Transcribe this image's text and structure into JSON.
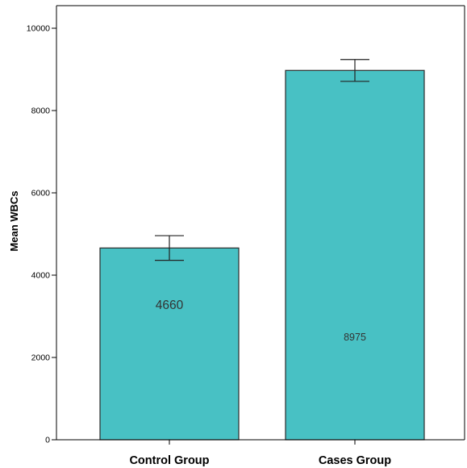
{
  "chart_data": {
    "type": "bar",
    "categories": [
      "Control Group",
      "Cases Group"
    ],
    "values": [
      4660,
      8975
    ],
    "error_bars": [
      {
        "low": 4360,
        "high": 4960
      },
      {
        "low": 8710,
        "high": 9240
      }
    ],
    "data_labels": [
      "4660",
      "8975"
    ],
    "ylabel": "Mean WBCs",
    "xlabel": "",
    "ylim": [
      0,
      11000
    ],
    "yticks": [
      0,
      2000,
      4000,
      6000,
      8000,
      10000
    ],
    "ytick_labels": [
      "0",
      "2000",
      "4000",
      "6000",
      "8000",
      "10000"
    ],
    "grid": false,
    "bar_color": "#48c1c4",
    "bar_edge_color": "#2b2b2b",
    "axis_color": "#000000"
  }
}
